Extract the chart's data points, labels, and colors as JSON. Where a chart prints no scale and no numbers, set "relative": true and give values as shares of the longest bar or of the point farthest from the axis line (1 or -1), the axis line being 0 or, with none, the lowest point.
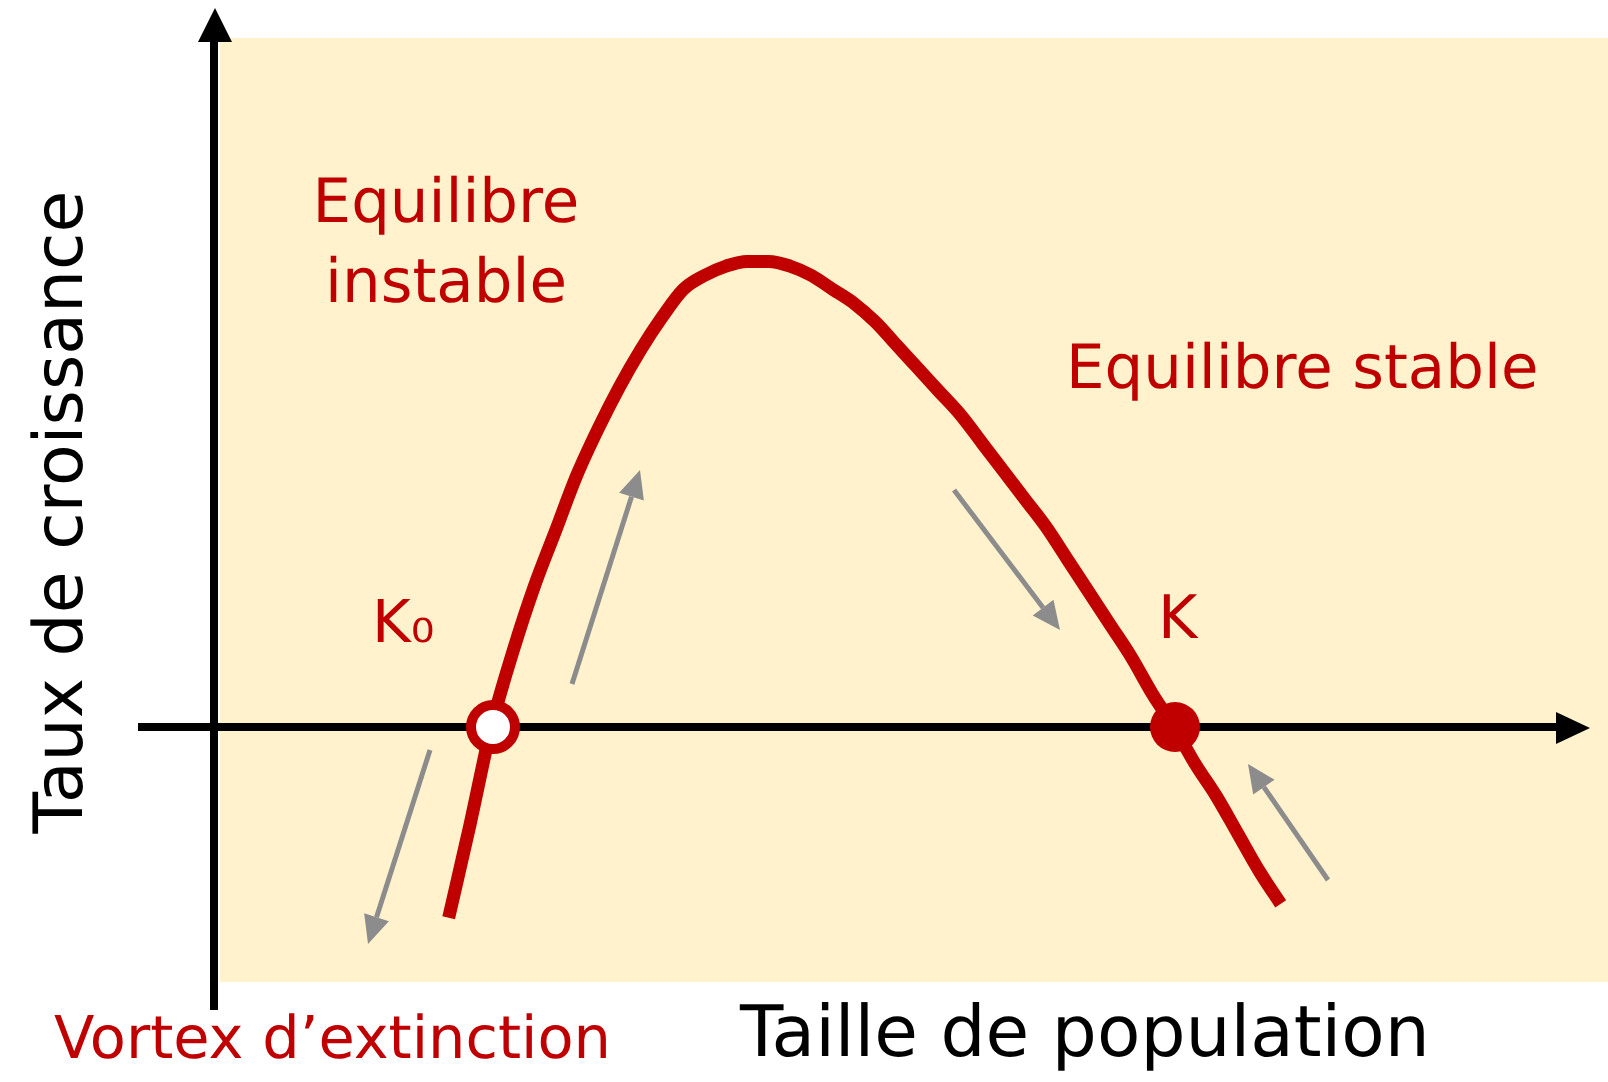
{
  "chart_data": {
    "type": "line",
    "xlabel": "Taille de population",
    "ylabel": "Taux de croissance",
    "relative": true,
    "annotations": [
      "Equilibre instable",
      "Equilibre stable",
      "K₀",
      "K",
      "Vortex d’extinction"
    ],
    "categories": [
      null,
      null,
      null,
      null,
      null,
      null,
      null,
      null,
      null,
      null,
      null,
      null,
      null,
      null,
      null,
      null,
      null,
      null,
      null,
      null,
      null,
      null,
      null,
      null,
      null,
      null,
      null,
      null,
      null,
      null,
      null,
      null,
      null,
      null,
      null,
      null,
      null,
      null,
      null,
      null,
      null,
      null,
      null,
      null,
      null,
      null,
      null,
      null,
      null,
      null,
      null,
      null,
      null,
      null,
      null,
      null,
      null,
      null,
      null,
      null,
      null,
      null,
      null,
      null
    ],
    "series": [
      {
        "color": "#c00000",
        "marker": "none",
        "values": [
          null,
          null,
          null,
          null,
          null,
          null,
          null,
          null,
          null,
          null,
          null,
          -0.41,
          -0.21,
          0,
          0.16,
          0.3,
          0.42,
          0.54,
          0.64,
          0.73,
          0.81,
          0.88,
          0.94,
          0.97,
          0.99,
          1,
          1,
          0.99,
          0.97,
          0.94,
          0.91,
          0.87,
          0.82,
          0.77,
          0.72,
          0.67,
          0.61,
          0.55,
          0.49,
          0.43,
          0.36,
          0.29,
          0.22,
          0.15,
          0.07,
          0,
          -0.08,
          -0.15,
          -0.23,
          -0.31,
          -0.38,
          null,
          null,
          null,
          null,
          null,
          null,
          null,
          null,
          null,
          null,
          null,
          null,
          null
        ]
      }
    ]
  }
}
